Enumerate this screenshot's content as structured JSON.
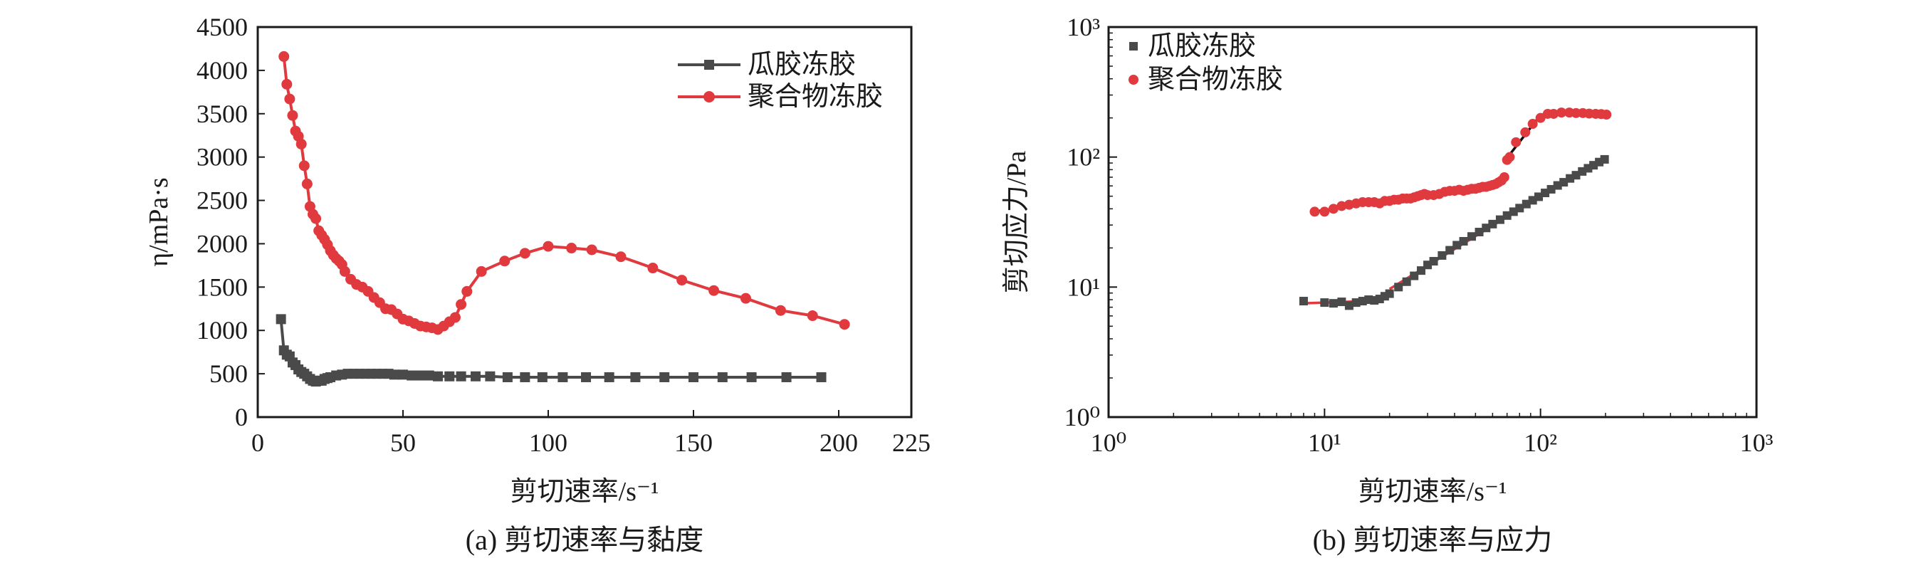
{
  "chart_data": [
    {
      "type": "line",
      "caption": "(a) 剪切速率与黏度",
      "xlabel": "剪切速率/s⁻¹",
      "ylabel": "η/mPa·s",
      "xlim": [
        0,
        225
      ],
      "ylim": [
        0,
        4500
      ],
      "xticks": [
        "0",
        "50",
        "100",
        "150",
        "200",
        "225"
      ],
      "yticks": [
        "0",
        "500",
        "1000",
        "1500",
        "2000",
        "2500",
        "3000",
        "3500",
        "4000",
        "4500"
      ],
      "legend_position": "top-right",
      "colors": {
        "series1": "#4a4a4a",
        "series2": "#e0393e"
      },
      "series": [
        {
          "name": "瓜胶冻胶",
          "x": [
            8,
            9,
            10,
            11,
            12,
            13,
            14,
            15,
            16,
            17,
            18,
            19,
            20,
            21,
            22,
            23,
            24,
            25,
            27,
            29,
            31,
            33,
            35,
            37,
            39,
            41,
            43,
            45,
            47,
            50,
            53,
            56,
            59,
            62,
            66,
            70,
            75,
            80,
            86,
            92,
            98,
            105,
            113,
            121,
            130,
            140,
            150,
            160,
            170,
            182,
            194
          ],
          "values": [
            1130,
            770,
            720,
            700,
            630,
            600,
            550,
            520,
            500,
            470,
            440,
            420,
            410,
            420,
            420,
            440,
            450,
            460,
            480,
            490,
            500,
            500,
            500,
            500,
            500,
            500,
            500,
            500,
            490,
            490,
            480,
            480,
            480,
            470,
            470,
            470,
            470,
            470,
            460,
            460,
            460,
            460,
            460,
            460,
            460,
            460,
            460,
            460,
            460,
            460,
            460
          ]
        },
        {
          "name": "聚合物冻胶",
          "x": [
            9,
            10,
            11,
            12,
            13,
            14,
            15,
            16,
            17,
            18,
            19,
            20,
            21,
            22,
            23,
            24,
            25,
            26,
            27,
            28,
            29,
            30,
            32,
            34,
            36,
            38,
            40,
            42,
            44,
            46,
            48,
            50,
            52,
            54,
            56,
            58,
            60,
            62,
            64,
            66,
            68,
            70,
            72,
            77,
            85,
            92,
            100,
            108,
            115,
            125,
            136,
            146,
            157,
            168,
            180,
            191,
            202
          ],
          "values": [
            4160,
            3840,
            3670,
            3480,
            3300,
            3240,
            3150,
            2900,
            2690,
            2430,
            2340,
            2290,
            2150,
            2100,
            2050,
            1990,
            1920,
            1870,
            1830,
            1800,
            1760,
            1680,
            1590,
            1530,
            1500,
            1450,
            1380,
            1320,
            1250,
            1240,
            1190,
            1130,
            1110,
            1080,
            1050,
            1040,
            1030,
            1010,
            1050,
            1100,
            1150,
            1300,
            1450,
            1680,
            1800,
            1890,
            1970,
            1950,
            1930,
            1850,
            1720,
            1580,
            1460,
            1370,
            1230,
            1170,
            1070
          ]
        }
      ]
    },
    {
      "type": "scatter",
      "caption": "(b) 剪切速率与应力",
      "xlabel": "剪切速率/s⁻¹",
      "ylabel": "剪切应力/Pa",
      "xscale": "log",
      "yscale": "log",
      "xlim": [
        1,
        1000
      ],
      "ylim": [
        1,
        1000
      ],
      "xticks": [
        "10⁰",
        "10¹",
        "10²",
        "10³"
      ],
      "yticks": [
        "10⁰",
        "10¹",
        "10²",
        "10³"
      ],
      "legend_position": "top-left",
      "colors": {
        "series1": "#4a4a4a",
        "series2": "#e0393e",
        "fit": "#111111"
      },
      "series": [
        {
          "name": "瓜胶冻胶",
          "x": [
            8,
            10,
            11,
            12,
            13,
            14,
            15,
            16,
            17,
            18,
            19,
            20,
            22,
            24,
            26,
            28,
            30,
            32,
            35,
            38,
            41,
            44,
            48,
            52,
            56,
            60,
            65,
            70,
            75,
            80,
            86,
            92,
            98,
            105,
            112,
            120,
            128,
            137,
            146,
            156,
            166,
            176,
            187,
            198
          ],
          "values": [
            7.8,
            7.6,
            7.5,
            7.7,
            7.2,
            7.6,
            7.8,
            8.0,
            7.9,
            8.1,
            8.5,
            8.9,
            10.0,
            11.0,
            12.2,
            13.4,
            14.8,
            15.8,
            17.5,
            19.2,
            21.0,
            22.5,
            24.5,
            26.5,
            28.5,
            30.5,
            33.0,
            35.5,
            38.0,
            40.5,
            43.5,
            46.5,
            49.5,
            53.0,
            56.5,
            60.5,
            64.0,
            68.5,
            72.5,
            77.5,
            82.0,
            86.5,
            91.5,
            96.0
          ]
        },
        {
          "name": "聚合物冻胶",
          "x": [
            9,
            10,
            11,
            12,
            13,
            14,
            15,
            16,
            17,
            18,
            19,
            20,
            21,
            22,
            23,
            24,
            25,
            26,
            27,
            28,
            29,
            30,
            32,
            34,
            36,
            38,
            40,
            42,
            44,
            46,
            48,
            50,
            52,
            54,
            56,
            58,
            60,
            62,
            64,
            66,
            68,
            70,
            72,
            77,
            85,
            92,
            100,
            108,
            115,
            125,
            136,
            146,
            157,
            168,
            180,
            191,
            202
          ],
          "values": [
            38,
            38,
            40,
            42,
            43,
            44,
            45,
            45,
            45,
            44,
            46,
            46,
            47,
            47,
            48,
            48,
            48,
            49,
            50,
            51,
            52,
            51,
            51,
            52,
            54,
            55,
            55,
            56,
            55,
            56,
            57,
            57,
            58,
            59,
            59,
            60,
            61,
            62,
            64,
            66,
            70,
            95,
            100,
            130,
            155,
            180,
            200,
            215,
            215,
            220,
            220,
            218,
            218,
            216,
            215,
            214,
            212
          ]
        }
      ]
    }
  ]
}
